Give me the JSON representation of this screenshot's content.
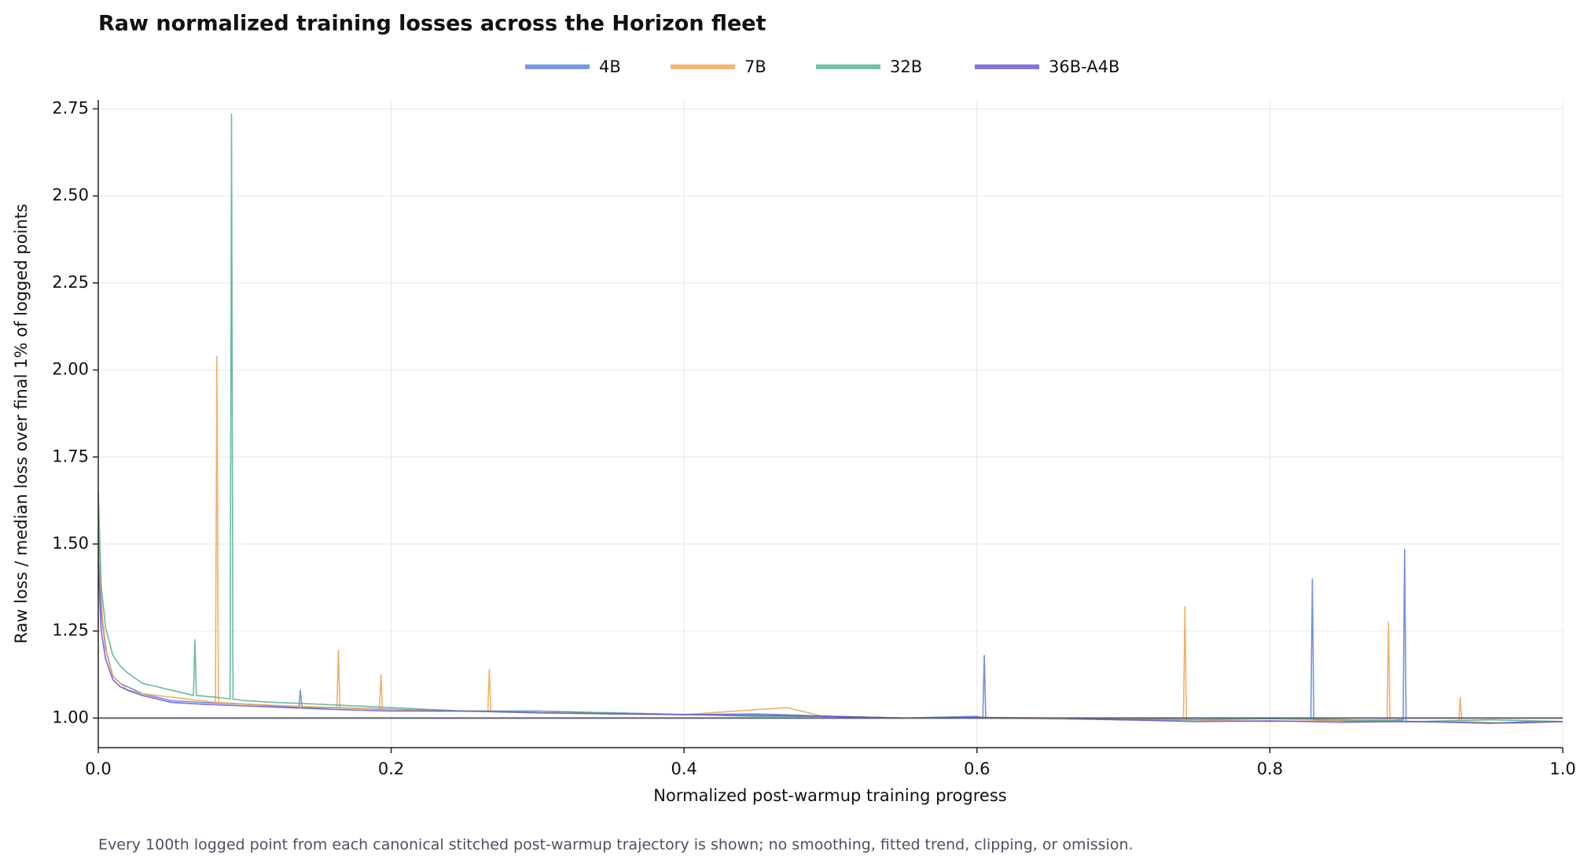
{
  "chart_data": {
    "type": "line",
    "title": "Raw normalized training losses across the Horizon fleet",
    "x_label": "Normalized post-warmup training progress",
    "y_label": "Raw loss / median loss over final 1% of logged points",
    "footnote": "Every 100th logged point from each canonical stitched post-warmup trajectory is shown; no smoothing, fitted trend, clipping, or omission.",
    "xlim": [
      0,
      1
    ],
    "ylim": [
      0.915,
      2.776
    ],
    "xticks": [
      {
        "value": 0,
        "label": "0.0"
      },
      0.2,
      0.4,
      0.6,
      0.8,
      {
        "value": 1,
        "label": "1.0"
      }
    ],
    "yticks": [
      {
        "value": 1,
        "label": "1.00"
      },
      1.25,
      {
        "value": 1.5,
        "label": "1.50"
      },
      1.75,
      {
        "value": 2,
        "label": "2.00"
      },
      2.25,
      {
        "value": 2.5,
        "label": "2.50"
      },
      2.75
    ],
    "grid": true,
    "legend": "top",
    "reference_line": 1,
    "series": [
      {
        "name": "4B",
        "color": "#5a7fe0",
        "x": [
          0,
          0.002,
          0.005,
          0.01,
          0.015,
          0.02,
          0.03,
          0.04,
          0.05,
          0.07,
          0.1,
          0.12,
          0.137,
          0.138,
          0.139,
          0.16,
          0.2,
          0.25,
          0.3,
          0.35,
          0.4,
          0.45,
          0.5,
          0.55,
          0.6,
          0.604,
          0.605,
          0.606,
          0.65,
          0.7,
          0.75,
          0.8,
          0.828,
          0.829,
          0.83,
          0.86,
          0.891,
          0.892,
          0.893,
          0.92,
          0.95,
          0.98,
          1.0
        ],
        "values": [
          1.55,
          1.3,
          1.2,
          1.12,
          1.1,
          1.09,
          1.07,
          1.06,
          1.05,
          1.045,
          1.04,
          1.035,
          1.03,
          1.08,
          1.03,
          1.03,
          1.025,
          1.02,
          1.02,
          1.015,
          1.01,
          1.012,
          1.005,
          1.0,
          1.005,
          1.0,
          1.18,
          1.0,
          1.0,
          0.995,
          1.0,
          0.998,
          1.0,
          1.4,
          0.995,
          0.99,
          0.995,
          1.485,
          0.99,
          0.99,
          0.985,
          0.99,
          0.99
        ]
      },
      {
        "name": "7B",
        "color": "#f0a24e",
        "x": [
          0,
          0.003,
          0.006,
          0.01,
          0.02,
          0.03,
          0.05,
          0.07,
          0.08,
          0.081,
          0.082,
          0.1,
          0.13,
          0.163,
          0.164,
          0.165,
          0.192,
          0.193,
          0.194,
          0.23,
          0.266,
          0.267,
          0.268,
          0.3,
          0.4,
          0.47,
          0.5,
          0.6,
          0.7,
          0.741,
          0.742,
          0.743,
          0.8,
          0.88,
          0.881,
          0.882,
          0.929,
          0.93,
          0.931,
          0.97,
          1.0
        ],
        "values": [
          1.5,
          1.28,
          1.18,
          1.12,
          1.08,
          1.07,
          1.06,
          1.05,
          1.045,
          2.04,
          1.045,
          1.04,
          1.035,
          1.03,
          1.195,
          1.03,
          1.025,
          1.125,
          1.025,
          1.02,
          1.02,
          1.14,
          1.02,
          1.015,
          1.01,
          1.03,
          1.0,
          1.0,
          0.995,
          1.0,
          1.32,
          0.995,
          0.99,
          0.995,
          1.275,
          0.99,
          0.99,
          1.06,
          0.99,
          0.985,
          0.99
        ]
      },
      {
        "name": "32B",
        "color": "#4fb08a",
        "x": [
          0,
          0.002,
          0.005,
          0.01,
          0.015,
          0.02,
          0.03,
          0.04,
          0.05,
          0.065,
          0.066,
          0.067,
          0.08,
          0.09,
          0.091,
          0.092,
          0.1,
          0.12,
          0.15,
          0.2,
          0.25,
          0.3,
          0.35,
          0.4,
          0.45,
          0.5,
          0.55,
          0.6,
          0.65,
          0.7,
          0.75,
          0.8,
          0.85,
          0.9,
          0.95,
          1.0
        ],
        "values": [
          1.65,
          1.38,
          1.26,
          1.18,
          1.15,
          1.13,
          1.1,
          1.09,
          1.08,
          1.065,
          1.225,
          1.065,
          1.06,
          1.055,
          2.735,
          1.055,
          1.05,
          1.045,
          1.04,
          1.03,
          1.02,
          1.02,
          1.015,
          1.01,
          1.005,
          1.005,
          1.0,
          1.0,
          1.0,
          0.995,
          0.995,
          0.998,
          0.995,
          0.99,
          0.995,
          0.99
        ]
      },
      {
        "name": "36B-A4B",
        "color": "#6a4fd6",
        "x": [
          0,
          0.002,
          0.005,
          0.01,
          0.015,
          0.02,
          0.03,
          0.04,
          0.05,
          0.07,
          0.1,
          0.13,
          0.16,
          0.2,
          0.25,
          0.3,
          0.35,
          0.4,
          0.45,
          0.5,
          0.55,
          0.6,
          0.65,
          0.7,
          0.75,
          0.8,
          0.85,
          0.9,
          0.95,
          1.0
        ],
        "values": [
          1.45,
          1.25,
          1.17,
          1.11,
          1.09,
          1.08,
          1.065,
          1.055,
          1.045,
          1.04,
          1.035,
          1.03,
          1.025,
          1.02,
          1.02,
          1.015,
          1.012,
          1.01,
          1.008,
          1.005,
          1.0,
          1.002,
          1.0,
          0.995,
          0.99,
          0.992,
          0.988,
          0.99,
          0.985,
          0.99
        ]
      }
    ]
  }
}
